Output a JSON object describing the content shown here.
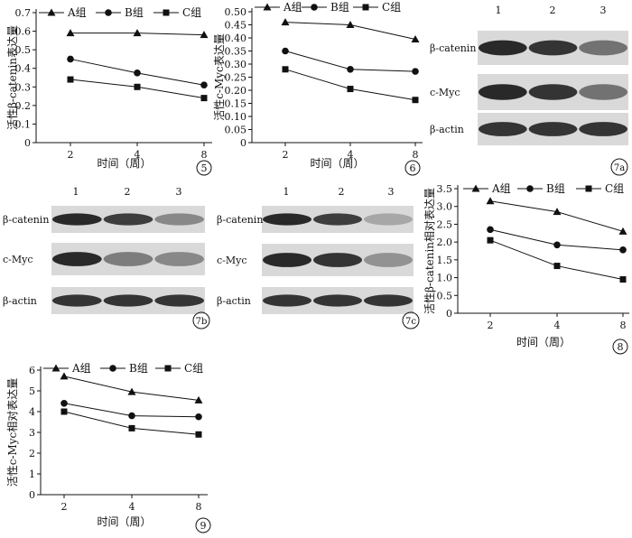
{
  "charts": [
    {
      "id": "5",
      "panel_label": "5",
      "chart_data": {
        "type": "line",
        "x": [
          2,
          4,
          8
        ],
        "categories": [
          "2",
          "4",
          "8"
        ],
        "series": [
          {
            "name": "A组",
            "marker": "triangle",
            "values": [
              0.59,
              0.59,
              0.58
            ]
          },
          {
            "name": "B组",
            "marker": "circle",
            "values": [
              0.45,
              0.375,
              0.31
            ]
          },
          {
            "name": "C组",
            "marker": "square",
            "values": [
              0.34,
              0.3,
              0.24
            ]
          }
        ],
        "xlabel": "时间（周）",
        "ylabel": "活性β-catenin表达量",
        "ylim": [
          0,
          0.7
        ],
        "yticks": [
          "0",
          "0.1",
          "0.2",
          "0.3",
          "0.4",
          "0.5",
          "0.6",
          "0.7"
        ],
        "legend": "top",
        "grid": false
      }
    },
    {
      "id": "6",
      "panel_label": "6",
      "chart_data": {
        "type": "line",
        "x": [
          2,
          4,
          8
        ],
        "categories": [
          "2",
          "4",
          "8"
        ],
        "series": [
          {
            "name": "A组",
            "marker": "triangle",
            "values": [
              0.46,
              0.45,
              0.395
            ]
          },
          {
            "name": "B组",
            "marker": "circle",
            "values": [
              0.35,
              0.28,
              0.272
            ]
          },
          {
            "name": "C组",
            "marker": "square",
            "values": [
              0.28,
              0.205,
              0.163
            ]
          }
        ],
        "xlabel": "时间（周）",
        "ylabel": "活性c-Myc表达量",
        "ylim": [
          0,
          0.5
        ],
        "yticks": [
          "0",
          "0.05",
          "0.10",
          "0.15",
          "0.20",
          "0.25",
          "0.30",
          "0.35",
          "0.40",
          "0.45",
          "0.50"
        ],
        "legend": "top",
        "grid": false
      }
    },
    {
      "id": "8",
      "panel_label": "8",
      "chart_data": {
        "type": "line",
        "x": [
          2,
          4,
          8
        ],
        "categories": [
          "2",
          "4",
          "8"
        ],
        "series": [
          {
            "name": "A组",
            "marker": "triangle",
            "values": [
              3.15,
              2.85,
              2.3
            ]
          },
          {
            "name": "B组",
            "marker": "circle",
            "values": [
              2.35,
              1.92,
              1.78
            ]
          },
          {
            "name": "C组",
            "marker": "square",
            "values": [
              2.05,
              1.33,
              0.95
            ]
          }
        ],
        "xlabel": "时间（周）",
        "ylabel": "活性β-catenin相对表达量",
        "ylim": [
          0,
          3.5
        ],
        "yticks": [
          "0",
          "0.5",
          "1.0",
          "1.5",
          "2.0",
          "2.5",
          "3.0",
          "3.5"
        ],
        "legend": "top",
        "grid": false
      }
    },
    {
      "id": "9",
      "panel_label": "9",
      "chart_data": {
        "type": "line",
        "x": [
          2,
          4,
          8
        ],
        "categories": [
          "2",
          "4",
          "8"
        ],
        "series": [
          {
            "name": "A组",
            "marker": "triangle",
            "values": [
              5.7,
              4.95,
              4.55
            ]
          },
          {
            "name": "B组",
            "marker": "circle",
            "values": [
              4.4,
              3.8,
              3.75
            ]
          },
          {
            "name": "C组",
            "marker": "square",
            "values": [
              4.0,
              3.2,
              2.9
            ]
          }
        ],
        "xlabel": "时间（周）",
        "ylabel": "活性c-Myc相对表达量",
        "ylim": [
          0,
          6
        ],
        "yticks": [
          "0",
          "1",
          "2",
          "3",
          "4",
          "5",
          "6"
        ],
        "legend": "top",
        "grid": false
      }
    }
  ],
  "blots": [
    {
      "id": "7a",
      "panel_label": "7a",
      "lanes": [
        "1",
        "2",
        "3"
      ],
      "rows": [
        {
          "label": "β-catenin",
          "intensity": [
            0.9,
            0.85,
            0.55
          ]
        },
        {
          "label": "c-Myc",
          "intensity": [
            0.9,
            0.85,
            0.55
          ]
        },
        {
          "label": "β-actin",
          "intensity": [
            0.85,
            0.85,
            0.85
          ]
        }
      ]
    },
    {
      "id": "7b",
      "panel_label": "7b",
      "lanes": [
        "1",
        "2",
        "3"
      ],
      "rows": [
        {
          "label": "β-catenin",
          "intensity": [
            0.9,
            0.8,
            0.45
          ]
        },
        {
          "label": "c-Myc",
          "intensity": [
            0.9,
            0.5,
            0.45
          ]
        },
        {
          "label": "β-actin",
          "intensity": [
            0.85,
            0.85,
            0.85
          ]
        }
      ]
    },
    {
      "id": "7c",
      "panel_label": "7c",
      "lanes": [
        "1",
        "2",
        "3"
      ],
      "rows": [
        {
          "label": "β-catenin",
          "intensity": [
            0.9,
            0.8,
            0.3
          ]
        },
        {
          "label": "c-Myc",
          "intensity": [
            0.9,
            0.85,
            0.4
          ]
        },
        {
          "label": "β-actin",
          "intensity": [
            0.85,
            0.85,
            0.85
          ]
        }
      ]
    }
  ]
}
